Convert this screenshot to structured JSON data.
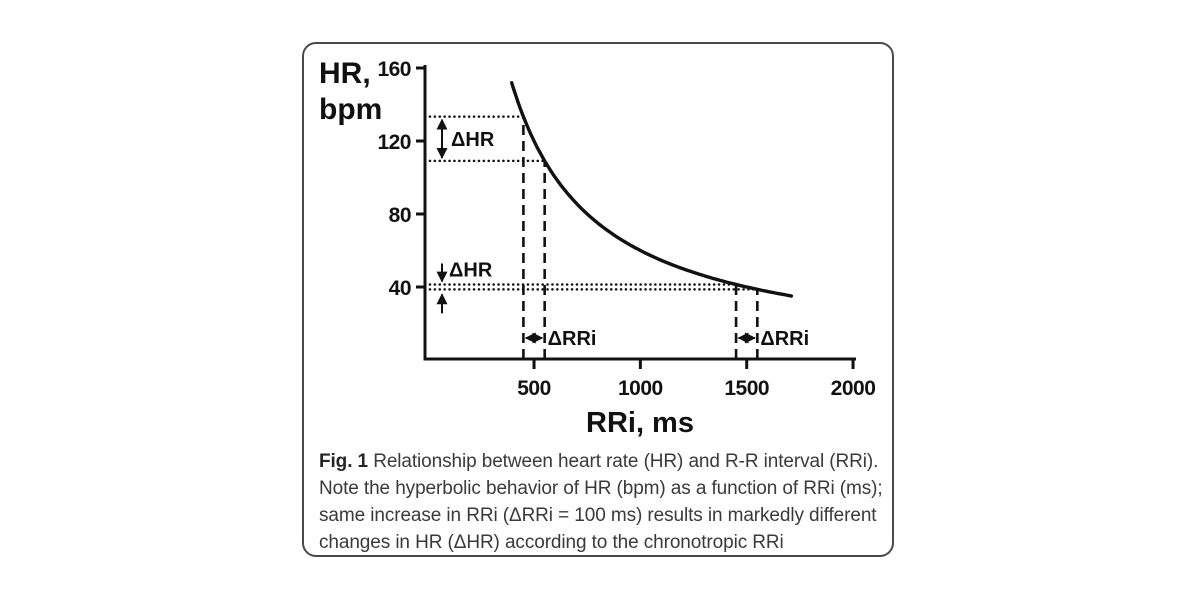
{
  "figure": {
    "caption": {
      "fig_label": "Fig. 1",
      "text_lines": [
        "Relationship between heart rate (HR) and R-R interval (RRi).",
        "Note the hyperbolic behavior of HR (bpm) as a function of RRi (ms);",
        "same increase in RRi (ΔRRi = 100 ms) results in markedly different",
        "changes in HR (ΔHR) according to the chronotropic RRi"
      ]
    }
  },
  "chart_data": {
    "type": "line",
    "title": "",
    "xlabel": "RRi, ms",
    "ylabel": "HR, bpm",
    "ylabel_lines": [
      "HR,",
      "bpm"
    ],
    "x_ticks": [
      500,
      1000,
      1500,
      2000
    ],
    "y_ticks": [
      160,
      120,
      80,
      40
    ],
    "x_axis_range_ms": [
      0,
      2030
    ],
    "y_axis_range_bpm": [
      0,
      160
    ],
    "grid": false,
    "ink_color": "#111111",
    "curve": {
      "relation": "HR = 60000 / RRi",
      "hr_constant": 60000,
      "rri_domain_ms": [
        395,
        1710
      ]
    },
    "annotations": [
      {
        "region": "short RRi (steep part of curve)",
        "rri_pair_ms": [
          450,
          550
        ],
        "hr_pair_bpm": [
          133.3,
          109.1
        ],
        "delta_rri_ms": 100,
        "delta_hr_bpm": 24.2,
        "delta_hr_label": "ΔHR",
        "delta_rri_label": "ΔRRi",
        "hr_marker_style": "double-arrow"
      },
      {
        "region": "long RRi (flat part of curve)",
        "rri_pair_ms": [
          1450,
          1550
        ],
        "hr_pair_bpm": [
          41.4,
          38.7
        ],
        "delta_rri_ms": 100,
        "delta_hr_bpm": 2.7,
        "delta_hr_label": "ΔHR",
        "delta_rri_label": "ΔRRi",
        "hr_marker_style": "split-arrows"
      }
    ]
  }
}
